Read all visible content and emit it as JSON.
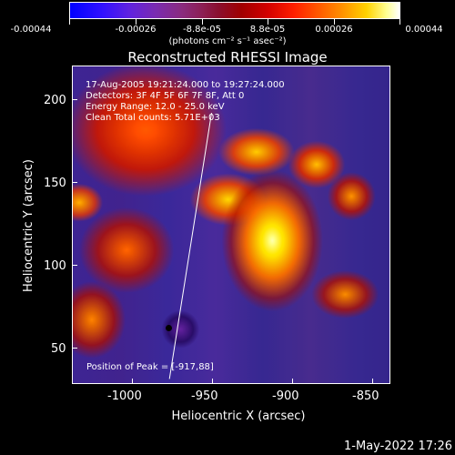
{
  "colorbar": {
    "tick_labels": [
      "-0.00044",
      "-0.00026",
      "-8.8e-05",
      "8.8e-05",
      "0.00026",
      "0.00044"
    ],
    "units": "(photons cm⁻² s⁻¹ asec⁻²)"
  },
  "plot": {
    "title": "Reconstructed RHESSI Image",
    "info_lines": [
      "17-Aug-2005 19:21:24.000 to 19:27:24.000",
      "Detectors: 3F 4F 5F 6F 7F 8F, Att 0",
      "Energy Range: 12.0 - 25.0 keV",
      "Clean    Total counts: 5.71E+03"
    ],
    "peak_label": "Position of Peak = [-917,88]",
    "x_axis_title": "Heliocentric X (arcsec)",
    "y_axis_title": "Heliocentric Y (arcsec)",
    "x_ticks": [
      "-1000",
      "-950",
      "-900",
      "-850"
    ],
    "y_ticks": [
      "200",
      "150",
      "100",
      "50"
    ]
  },
  "footer": {
    "timestamp": "1-May-2022 17:26"
  }
}
